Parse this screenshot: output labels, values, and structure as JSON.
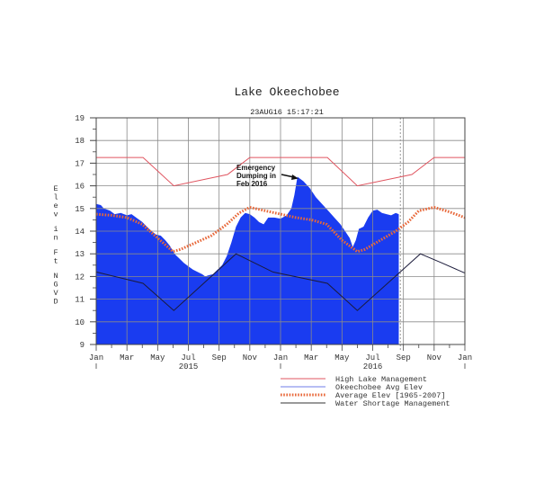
{
  "chart_data": {
    "type": "area",
    "title": "Lake Okeechobee",
    "subtitle": "23AUG16  15:17:21",
    "xlabel": "",
    "ylabel": "Elev in Ft NGVD",
    "ylim": [
      9,
      19
    ],
    "yticks": [
      9,
      10,
      11,
      12,
      13,
      14,
      15,
      16,
      17,
      18,
      19
    ],
    "xlim_months": [
      0,
      24
    ],
    "xtick_labels": [
      "Jan",
      "Mar",
      "May",
      "Jul",
      "Sep",
      "Nov",
      "Jan",
      "Mar",
      "May",
      "Jul",
      "Sep",
      "Nov",
      "Jan"
    ],
    "xtick_months": [
      0,
      2,
      4,
      6,
      8,
      10,
      12,
      14,
      16,
      18,
      20,
      22,
      24
    ],
    "year_labels": [
      {
        "label": "2015",
        "month": 6
      },
      {
        "label": "2016",
        "month": 18
      }
    ],
    "year_marks": [
      0,
      12,
      24
    ],
    "grid": true,
    "current_date_marker_month": 19.8,
    "legend_position": "bottom-right",
    "annotation": {
      "lines": [
        "Emergency",
        "Dumping in",
        "Feb 2016"
      ],
      "arrow_to": {
        "month": 13.1,
        "value": 16.4
      }
    },
    "series": [
      {
        "name": "High Lake Management",
        "color": "#e05560",
        "style": "line",
        "points": [
          [
            0,
            17.25
          ],
          [
            3.05,
            17.25
          ],
          [
            5.05,
            16.0
          ],
          [
            8.55,
            16.5
          ],
          [
            10,
            17.25
          ],
          [
            15.05,
            17.25
          ],
          [
            17.0,
            16.0
          ],
          [
            20.55,
            16.5
          ],
          [
            22,
            17.25
          ],
          [
            24,
            17.25
          ]
        ]
      },
      {
        "name": "Okeechobee Avg Elev",
        "color": "#1a3cf0",
        "style": "area",
        "points": [
          [
            0,
            15.2
          ],
          [
            0.3,
            15.15
          ],
          [
            0.5,
            15.0
          ],
          [
            0.9,
            14.9
          ],
          [
            1.2,
            14.75
          ],
          [
            1.6,
            14.8
          ],
          [
            2.0,
            14.7
          ],
          [
            2.3,
            14.75
          ],
          [
            2.6,
            14.6
          ],
          [
            3.0,
            14.4
          ],
          [
            3.3,
            14.2
          ],
          [
            3.6,
            14.0
          ],
          [
            3.9,
            13.85
          ],
          [
            4.2,
            13.8
          ],
          [
            4.5,
            13.6
          ],
          [
            4.8,
            13.35
          ],
          [
            5.1,
            13.0
          ],
          [
            5.4,
            12.8
          ],
          [
            5.7,
            12.6
          ],
          [
            6.0,
            12.45
          ],
          [
            6.3,
            12.3
          ],
          [
            6.6,
            12.2
          ],
          [
            6.9,
            12.1
          ],
          [
            7.1,
            12.0
          ],
          [
            7.3,
            12.05
          ],
          [
            7.6,
            12.1
          ],
          [
            7.9,
            12.3
          ],
          [
            8.2,
            12.5
          ],
          [
            8.5,
            12.9
          ],
          [
            8.8,
            13.5
          ],
          [
            9.1,
            14.2
          ],
          [
            9.4,
            14.6
          ],
          [
            9.7,
            14.8
          ],
          [
            10.0,
            14.75
          ],
          [
            10.3,
            14.6
          ],
          [
            10.6,
            14.4
          ],
          [
            10.9,
            14.3
          ],
          [
            11.2,
            14.6
          ],
          [
            11.6,
            14.6
          ],
          [
            12.0,
            14.55
          ],
          [
            12.4,
            14.7
          ],
          [
            12.7,
            15.0
          ],
          [
            12.9,
            15.6
          ],
          [
            13.1,
            16.4
          ],
          [
            13.5,
            16.2
          ],
          [
            13.9,
            15.9
          ],
          [
            14.3,
            15.5
          ],
          [
            14.7,
            15.2
          ],
          [
            15.1,
            14.9
          ],
          [
            15.5,
            14.6
          ],
          [
            15.9,
            14.3
          ],
          [
            16.2,
            14.0
          ],
          [
            16.5,
            13.7
          ],
          [
            16.7,
            13.3
          ],
          [
            16.9,
            13.6
          ],
          [
            17.1,
            14.1
          ],
          [
            17.4,
            14.2
          ],
          [
            17.7,
            14.6
          ],
          [
            18.0,
            14.9
          ],
          [
            18.3,
            14.95
          ],
          [
            18.6,
            14.8
          ],
          [
            18.9,
            14.75
          ],
          [
            19.2,
            14.7
          ],
          [
            19.5,
            14.8
          ],
          [
            19.7,
            14.75
          ]
        ]
      },
      {
        "name": "Average Elev [1965-2007]",
        "color": "#e8683a",
        "style": "dotted",
        "points": [
          [
            0,
            14.75
          ],
          [
            1,
            14.7
          ],
          [
            2,
            14.6
          ],
          [
            3,
            14.3
          ],
          [
            4,
            13.7
          ],
          [
            5,
            13.1
          ],
          [
            5.5,
            13.2
          ],
          [
            6.5,
            13.5
          ],
          [
            7.5,
            13.8
          ],
          [
            8.5,
            14.3
          ],
          [
            9.3,
            14.8
          ],
          [
            10,
            15.05
          ],
          [
            11,
            14.9
          ],
          [
            12,
            14.75
          ],
          [
            13,
            14.6
          ],
          [
            14,
            14.5
          ],
          [
            15,
            14.3
          ],
          [
            16,
            13.6
          ],
          [
            17,
            13.1
          ],
          [
            17.5,
            13.2
          ],
          [
            18.5,
            13.6
          ],
          [
            19.5,
            14.0
          ],
          [
            20.3,
            14.4
          ],
          [
            21,
            14.9
          ],
          [
            22,
            15.05
          ],
          [
            23,
            14.85
          ],
          [
            24,
            14.6
          ]
        ]
      },
      {
        "name": "Water Shortage Management",
        "color": "#1a1a3a",
        "style": "line",
        "points": [
          [
            0,
            12.2
          ],
          [
            3.05,
            11.7
          ],
          [
            5.05,
            10.5
          ],
          [
            9.1,
            13.0
          ],
          [
            11.5,
            12.2
          ],
          [
            15.05,
            11.7
          ],
          [
            17.0,
            10.5
          ],
          [
            21.1,
            13.0
          ],
          [
            22.5,
            12.6
          ],
          [
            24,
            12.15
          ]
        ]
      }
    ]
  },
  "legend": {
    "items": [
      {
        "label": "High Lake Management",
        "color": "#e05560",
        "style": "line"
      },
      {
        "label": "Okeechobee Avg Elev",
        "color": "#6f7ee8",
        "style": "line"
      },
      {
        "label": "Average Elev [1965-2007]",
        "color": "#e8683a",
        "style": "dotted"
      },
      {
        "label": "Water Shortage Management",
        "color": "#333333",
        "style": "line"
      }
    ]
  },
  "colors": {
    "grid": "#8a8a8a",
    "axis": "#444444",
    "text": "#333333",
    "marker": "#999999"
  }
}
